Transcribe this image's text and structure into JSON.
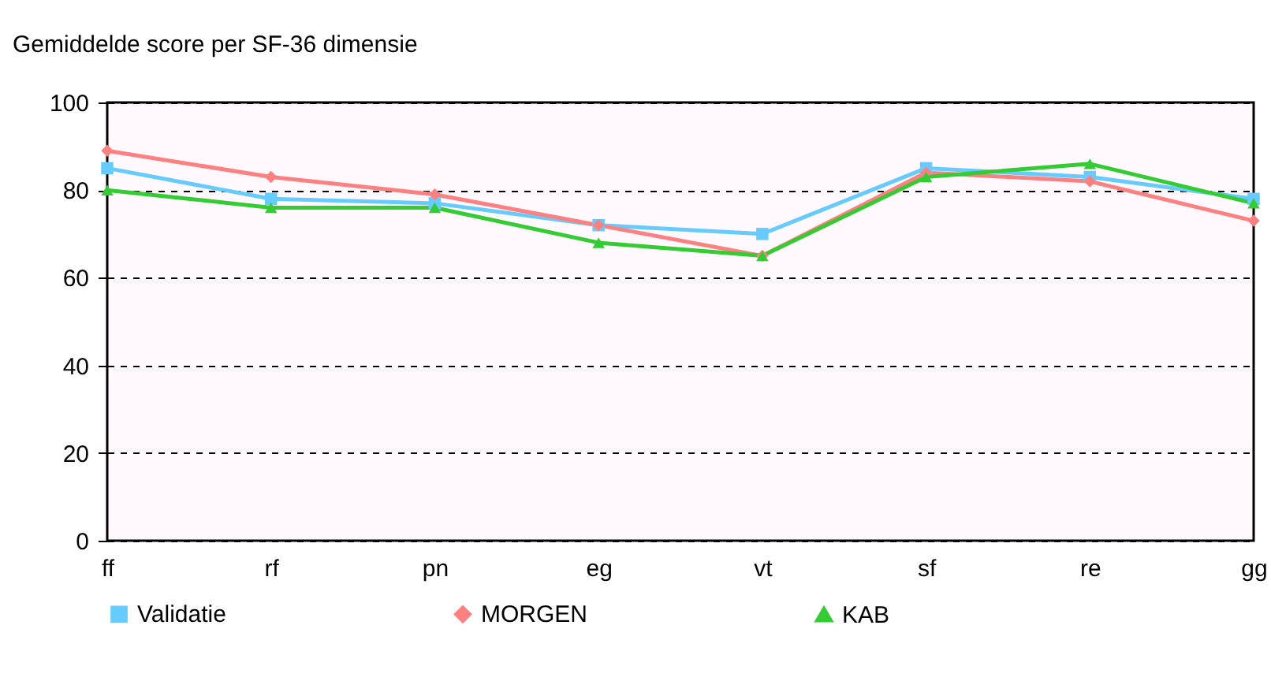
{
  "chart_data": {
    "type": "line",
    "title": "Gemiddelde score per SF-36 dimensie",
    "categories": [
      "ff",
      "rf",
      "pn",
      "eg",
      "vt",
      "sf",
      "re",
      "gg"
    ],
    "series": [
      {
        "name": "Validatie",
        "color": "#66ccff",
        "marker": "square",
        "values": [
          85,
          78,
          77,
          72,
          70,
          85,
          83,
          78
        ]
      },
      {
        "name": "MORGEN",
        "color": "#ff8080",
        "marker": "diamond",
        "values": [
          89,
          83,
          79,
          72,
          65,
          84,
          82,
          73
        ]
      },
      {
        "name": "KAB",
        "color": "#33cc33",
        "marker": "triangle",
        "values": [
          80,
          76,
          76,
          68,
          65,
          83,
          86,
          77
        ]
      }
    ],
    "ylim": [
      0,
      100
    ],
    "yticks": [
      0,
      20,
      40,
      60,
      80,
      100
    ],
    "grid": "y",
    "legend": "bottom",
    "line_style": "solid"
  }
}
